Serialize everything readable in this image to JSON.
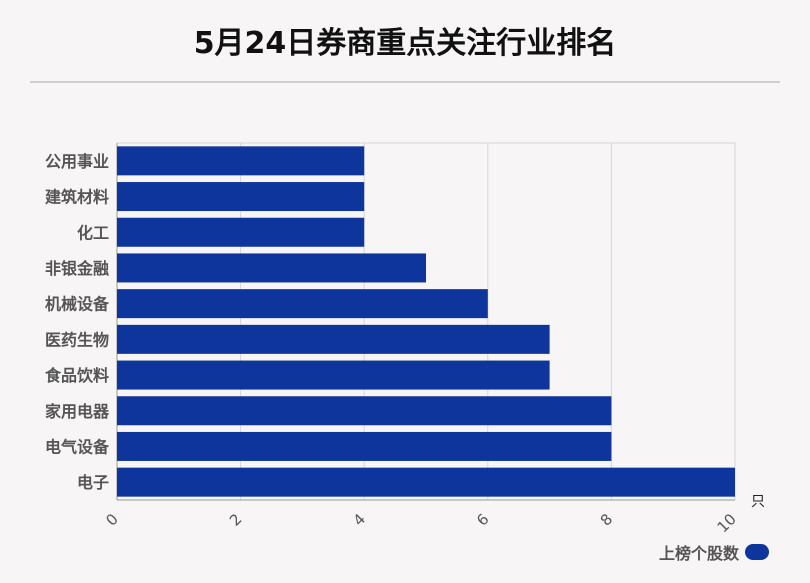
{
  "title": "5月24日券商重点关注行业排名",
  "chart_data": {
    "type": "bar",
    "orientation": "horizontal",
    "title": "5月24日券商重点关注行业排名",
    "categories": [
      "公用事业",
      "建筑材料",
      "化工",
      "非银金融",
      "机械设备",
      "医药生物",
      "食品饮料",
      "家用电器",
      "电气设备",
      "电子"
    ],
    "series": [
      {
        "name": "上榜个股数",
        "values": [
          4,
          4,
          4,
          5,
          6,
          7,
          7,
          8,
          8,
          10
        ]
      }
    ],
    "xlim": [
      0,
      10
    ],
    "xticks": [
      "0",
      "2",
      "4",
      "6",
      "8",
      "10"
    ],
    "x_unit": "只",
    "bar_color": "#0d359c",
    "grid": true,
    "legend_position": "bottom-right"
  }
}
